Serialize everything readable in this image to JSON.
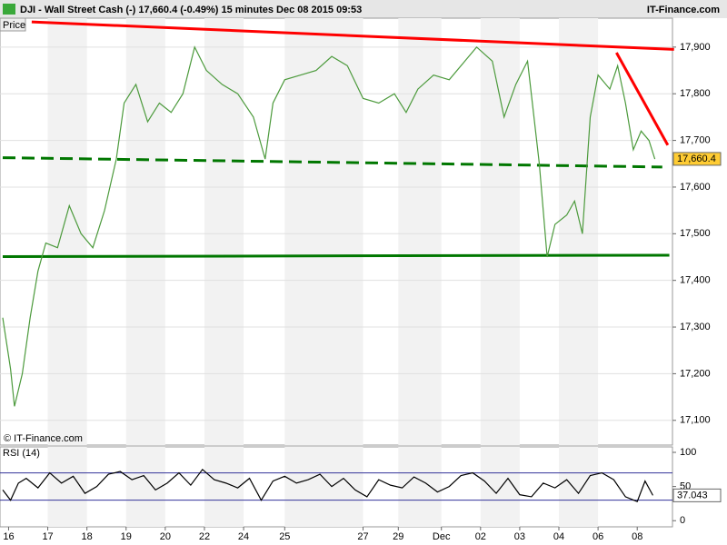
{
  "chart_data": [
    {
      "type": "line",
      "title": "DJI - Wall Street Cash (-)   17,660.4 (-0.49%)   15 minutes   Dec 08 2015 09:53",
      "brand": "IT-Finance.com",
      "copyright": "© IT-Finance.com",
      "panel_label": "Price",
      "x": [
        0,
        0.2,
        0.3,
        0.5,
        0.7,
        0.9,
        1.1,
        1.4,
        1.7,
        2.0,
        2.3,
        2.6,
        2.9,
        3.1,
        3.4,
        3.7,
        4.0,
        4.3,
        4.6,
        4.9,
        5.2,
        5.6,
        6.0,
        6.4,
        6.7,
        6.9,
        7.2,
        7.6,
        8.0,
        8.4,
        8.8,
        9.2,
        9.6,
        10.0,
        10.3,
        10.6,
        11.0,
        11.4,
        11.8,
        12.1,
        12.5,
        12.8,
        13.1,
        13.4,
        13.7,
        13.9,
        14.1,
        14.4,
        14.6,
        14.8,
        15.0,
        15.2,
        15.5,
        15.7,
        15.9,
        16.1,
        16.3,
        16.5,
        16.65
      ],
      "series": [
        {
          "name": "Price",
          "color": "#4c9a3c",
          "values": [
            17320,
            17210,
            17130,
            17200,
            17320,
            17420,
            17480,
            17470,
            17560,
            17500,
            17470,
            17550,
            17660,
            17780,
            17820,
            17740,
            17780,
            17760,
            17800,
            17900,
            17850,
            17820,
            17800,
            17750,
            17660,
            17780,
            17830,
            17840,
            17850,
            17880,
            17860,
            17790,
            17780,
            17800,
            17760,
            17810,
            17840,
            17830,
            17870,
            17900,
            17870,
            17750,
            17820,
            17870,
            17650,
            17450,
            17520,
            17540,
            17570,
            17500,
            17750,
            17840,
            17810,
            17860,
            17780,
            17680,
            17720,
            17700,
            17660
          ]
        }
      ],
      "lines": [
        {
          "color": "#ff0000",
          "dash": false,
          "x": [
            0.74,
            17.14
          ],
          "y": [
            17954,
            17895
          ]
        },
        {
          "color": "#ff0000",
          "dash": false,
          "x": [
            15.67,
            16.98
          ],
          "y": [
            17888,
            17690
          ]
        },
        {
          "color": "#007700",
          "dash": true,
          "x": [
            0,
            16.84
          ],
          "y": [
            17663,
            17643
          ]
        },
        {
          "color": "#007700",
          "dash": false,
          "x": [
            0,
            17.02
          ],
          "y": [
            17451,
            17454
          ]
        }
      ],
      "last": {
        "value": 17660.4,
        "label": "17,660.4"
      },
      "xlim": [
        0,
        17.1
      ],
      "ylim": [
        17047,
        17962
      ],
      "yticks": [
        {
          "value": 17100,
          "label": "17,100"
        },
        {
          "value": 17200,
          "label": "17,200"
        },
        {
          "value": 17300,
          "label": "17,300"
        },
        {
          "value": 17400,
          "label": "17,400"
        },
        {
          "value": 17500,
          "label": "17,500"
        },
        {
          "value": 17600,
          "label": "17,600"
        },
        {
          "value": 17700,
          "label": "17,700"
        },
        {
          "value": 17800,
          "label": "17,800"
        },
        {
          "value": 17900,
          "label": "17,900"
        }
      ],
      "grid": true
    },
    {
      "type": "line",
      "panel_label": "RSI (14)",
      "x": [
        0,
        0.2,
        0.4,
        0.6,
        0.9,
        1.2,
        1.5,
        1.8,
        2.1,
        2.4,
        2.7,
        3.0,
        3.3,
        3.6,
        3.9,
        4.2,
        4.5,
        4.8,
        5.1,
        5.4,
        5.7,
        6.0,
        6.3,
        6.6,
        6.9,
        7.2,
        7.5,
        7.8,
        8.1,
        8.4,
        8.7,
        9.0,
        9.3,
        9.6,
        9.9,
        10.2,
        10.5,
        10.8,
        11.1,
        11.4,
        11.7,
        12.0,
        12.3,
        12.6,
        12.9,
        13.2,
        13.5,
        13.8,
        14.1,
        14.4,
        14.7,
        15.0,
        15.3,
        15.6,
        15.9,
        16.2,
        16.4,
        16.6
      ],
      "series": [
        {
          "name": "RSI (14)",
          "color": "#000000",
          "values": [
            45,
            30,
            55,
            62,
            48,
            70,
            55,
            65,
            40,
            50,
            68,
            72,
            60,
            66,
            45,
            55,
            70,
            52,
            75,
            60,
            55,
            48,
            62,
            30,
            58,
            65,
            55,
            60,
            68,
            50,
            62,
            45,
            35,
            60,
            52,
            48,
            64,
            55,
            42,
            50,
            66,
            70,
            58,
            40,
            62,
            38,
            35,
            55,
            48,
            60,
            40,
            66,
            70,
            60,
            35,
            28,
            58,
            37.043
          ]
        }
      ],
      "levels": [
        30,
        70
      ],
      "last": 37.043,
      "xlim": [
        0,
        17.1
      ],
      "ylim": [
        -9,
        108
      ],
      "yticks": [
        0,
        50,
        100
      ],
      "xticks": [
        {
          "value": 0.15,
          "label": "16"
        },
        {
          "value": 1.15,
          "label": "17"
        },
        {
          "value": 2.15,
          "label": "18"
        },
        {
          "value": 3.15,
          "label": "19"
        },
        {
          "value": 4.15,
          "label": "20"
        },
        {
          "value": 5.15,
          "label": "22"
        },
        {
          "value": 6.15,
          "label": "24"
        },
        {
          "value": 7.2,
          "label": "25"
        },
        {
          "value": 9.2,
          "label": "27"
        },
        {
          "value": 10.1,
          "label": "29"
        },
        {
          "value": 11.2,
          "label": "Dec"
        },
        {
          "value": 12.2,
          "label": "02"
        },
        {
          "value": 13.2,
          "label": "03"
        },
        {
          "value": 14.2,
          "label": "04"
        },
        {
          "value": 15.2,
          "label": "06"
        },
        {
          "value": 16.2,
          "label": "08"
        }
      ]
    }
  ]
}
